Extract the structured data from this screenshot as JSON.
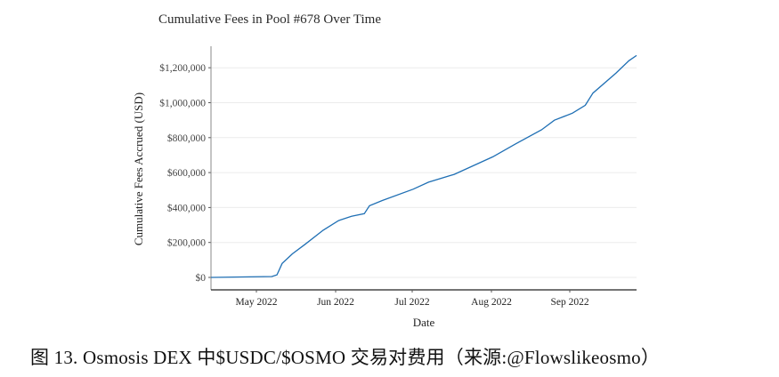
{
  "chart_data": {
    "type": "line",
    "title": "Cumulative Fees in Pool #678 Over Time",
    "xlabel": "Date",
    "ylabel": "Cumulative Fees Accrued (USD)",
    "ylim": [
      -40000,
      1320000
    ],
    "yticks": [
      0,
      200000,
      400000,
      600000,
      800000,
      1000000,
      1200000
    ],
    "ytick_labels": [
      "$0",
      "$200,000",
      "$400,000",
      "$600,000",
      "$800,000",
      "$1,000,000",
      "$1,200,000"
    ],
    "xticks": [
      "May 2022",
      "Jun 2022",
      "Jul 2022",
      "Aug 2022",
      "Sep 2022"
    ],
    "grid": "horizontal",
    "legend": "none",
    "series": [
      {
        "name": "Cumulative Fees",
        "color": "#1f6fb4",
        "x": [
          "2022-04-13",
          "2022-05-07",
          "2022-05-09",
          "2022-05-11",
          "2022-05-15",
          "2022-05-20",
          "2022-05-27",
          "2022-06-02",
          "2022-06-07",
          "2022-06-12",
          "2022-06-14",
          "2022-06-19",
          "2022-07-01",
          "2022-07-07",
          "2022-07-17",
          "2022-08-01",
          "2022-08-10",
          "2022-08-20",
          "2022-08-25",
          "2022-09-01",
          "2022-09-06",
          "2022-09-09",
          "2022-09-18",
          "2022-09-23",
          "2022-09-28"
        ],
        "values": [
          0,
          5000,
          15000,
          80000,
          135000,
          190000,
          270000,
          325000,
          350000,
          365000,
          410000,
          440000,
          505000,
          545000,
          590000,
          690000,
          765000,
          845000,
          900000,
          940000,
          985000,
          1055000,
          1170000,
          1240000,
          1270000
        ]
      }
    ]
  },
  "caption": {
    "text": "图 13. Osmosis DEX 中$USDC/$OSMO 交易对费用（来源:@Flowslikeosmo）"
  }
}
